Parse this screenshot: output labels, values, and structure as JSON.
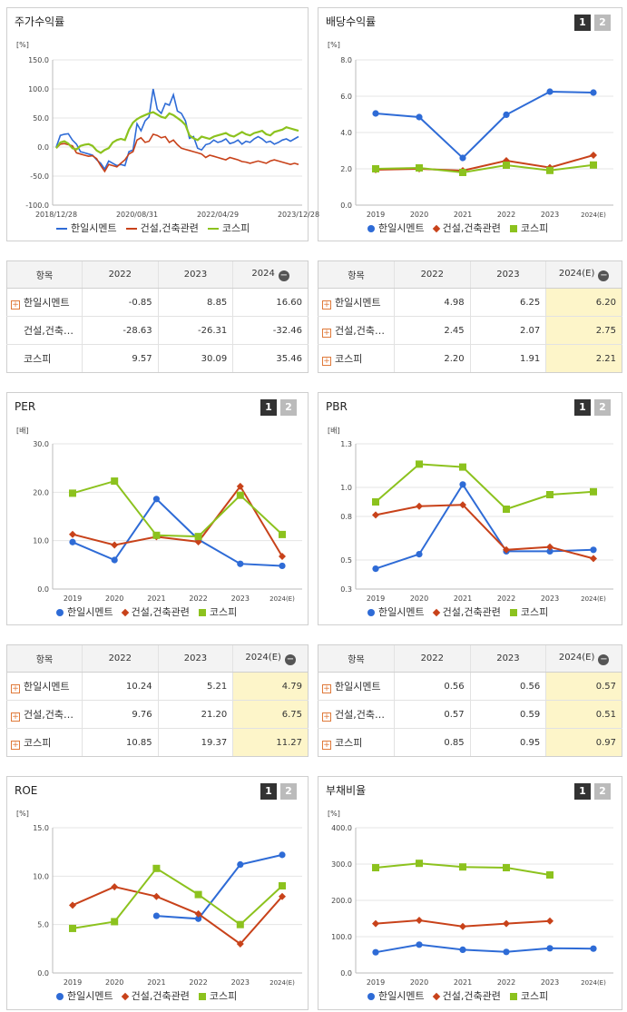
{
  "colors": {
    "s1": "#2e6bd6",
    "s2": "#c8421a",
    "s3": "#8cc21e"
  },
  "legend": [
    "한일시멘트",
    "건설,건축관련",
    "코스피"
  ],
  "chart_data": [
    {
      "title": "주가수익률",
      "type": "line",
      "unit": "[%]",
      "ylim": [
        -100,
        150
      ],
      "yticks": [
        "150.0",
        "100.0",
        "50.0",
        "0.0",
        "-50.0",
        "-100.0"
      ],
      "xticks": [
        "2018/12/28",
        "2020/08/31",
        "2022/04/29",
        "2023/12/28"
      ],
      "x": [
        0,
        1,
        2,
        3,
        4,
        5,
        6,
        7,
        8,
        9,
        10,
        11,
        12,
        13,
        14,
        15,
        16,
        17,
        18,
        19,
        20,
        21,
        22,
        23,
        24,
        25,
        26,
        27,
        28,
        29,
        30,
        31,
        32,
        33,
        34,
        35,
        36,
        37,
        38,
        39,
        40,
        41,
        42,
        43,
        44,
        45,
        46,
        47,
        48,
        49,
        50,
        51,
        52,
        53,
        54,
        55,
        56,
        57,
        58,
        59,
        60
      ],
      "series": [
        {
          "name": "한일시멘트",
          "values": [
            0,
            20,
            22,
            23,
            12,
            5,
            -8,
            -10,
            -12,
            -14,
            -22,
            -28,
            -38,
            -24,
            -28,
            -32,
            -30,
            -32,
            -8,
            -5,
            40,
            28,
            45,
            52,
            100,
            65,
            58,
            75,
            72,
            90,
            62,
            58,
            45,
            15,
            18,
            -2,
            -5,
            4,
            6,
            12,
            8,
            10,
            14,
            6,
            8,
            12,
            5,
            10,
            8,
            14,
            18,
            14,
            8,
            10,
            5,
            8,
            12,
            14,
            10,
            14,
            18
          ]
        },
        {
          "name": "건설,건축관련",
          "values": [
            -2,
            5,
            6,
            4,
            2,
            -10,
            -12,
            -14,
            -16,
            -15,
            -20,
            -32,
            -42,
            -30,
            -32,
            -34,
            -28,
            -22,
            -12,
            -8,
            12,
            16,
            8,
            10,
            22,
            20,
            16,
            18,
            8,
            12,
            4,
            -2,
            -4,
            -6,
            -8,
            -10,
            -12,
            -18,
            -14,
            -16,
            -18,
            -20,
            -22,
            -18,
            -20,
            -22,
            -25,
            -26,
            -28,
            -26,
            -24,
            -26,
            -28,
            -24,
            -22,
            -24,
            -26,
            -28,
            -30,
            -28,
            -30
          ]
        },
        {
          "name": "코스피",
          "values": [
            -2,
            8,
            10,
            6,
            -2,
            -4,
            2,
            4,
            5,
            2,
            -6,
            -10,
            -5,
            -2,
            8,
            12,
            14,
            12,
            30,
            42,
            48,
            52,
            55,
            58,
            60,
            56,
            52,
            50,
            58,
            55,
            50,
            45,
            38,
            20,
            15,
            12,
            18,
            16,
            14,
            18,
            20,
            22,
            24,
            20,
            18,
            22,
            26,
            22,
            20,
            24,
            26,
            28,
            22,
            20,
            26,
            28,
            30,
            34,
            32,
            30,
            28
          ]
        }
      ]
    },
    {
      "title": "배당수익률",
      "type": "line",
      "unit": "[%]",
      "ylim": [
        0,
        8
      ],
      "yticks": [
        "8.0",
        "6.0",
        "4.0",
        "2.0",
        "0.0"
      ],
      "categories": [
        "2019",
        "2020",
        "2021",
        "2022",
        "2023",
        "2024(E)"
      ],
      "series": [
        {
          "name": "한일시멘트",
          "values": [
            5.05,
            4.85,
            2.6,
            4.98,
            6.25,
            6.2
          ]
        },
        {
          "name": "건설,건축관련",
          "values": [
            1.95,
            2.0,
            1.9,
            2.45,
            2.07,
            2.75
          ]
        },
        {
          "name": "코스피",
          "values": [
            2.0,
            2.05,
            1.8,
            2.2,
            1.91,
            2.21
          ]
        }
      ]
    },
    {
      "title": "PER",
      "type": "line",
      "unit": "[배]",
      "ylim": [
        0,
        30
      ],
      "yticks": [
        "30.0",
        "20.0",
        "10.0",
        "0.0"
      ],
      "categories": [
        "2019",
        "2020",
        "2021",
        "2022",
        "2023",
        "2024(E)"
      ],
      "series": [
        {
          "name": "한일시멘트",
          "values": [
            9.7,
            6.0,
            18.6,
            10.24,
            5.21,
            4.79
          ]
        },
        {
          "name": "건설,건축관련",
          "values": [
            11.3,
            9.1,
            10.8,
            9.76,
            21.2,
            6.75
          ]
        },
        {
          "name": "코스피",
          "values": [
            19.8,
            22.3,
            11.1,
            10.85,
            19.37,
            11.27
          ]
        }
      ]
    },
    {
      "title": "PBR",
      "type": "line",
      "unit": "[배]",
      "ylim": [
        0.3,
        1.3
      ],
      "yticks": [
        "1.3",
        "1.0",
        "0.8",
        "0.5",
        "0.3"
      ],
      "categories": [
        "2019",
        "2020",
        "2021",
        "2022",
        "2023",
        "2024(E)"
      ],
      "series": [
        {
          "name": "한일시멘트",
          "values": [
            0.44,
            0.54,
            1.02,
            0.56,
            0.56,
            0.57
          ]
        },
        {
          "name": "건설,건축관련",
          "values": [
            0.81,
            0.87,
            0.88,
            0.57,
            0.59,
            0.51
          ]
        },
        {
          "name": "코스피",
          "values": [
            0.9,
            1.16,
            1.14,
            0.85,
            0.95,
            0.97
          ]
        }
      ]
    },
    {
      "title": "ROE",
      "type": "line",
      "unit": "[%]",
      "ylim": [
        0,
        15
      ],
      "yticks": [
        "15.0",
        "10.0",
        "5.0",
        "0.0"
      ],
      "categories": [
        "2019",
        "2020",
        "2021",
        "2022",
        "2023",
        "2024(E)"
      ],
      "series": [
        {
          "name": "한일시멘트",
          "values": [
            null,
            null,
            5.9,
            5.6,
            11.2,
            12.2
          ]
        },
        {
          "name": "건설,건축관련",
          "values": [
            7.0,
            8.9,
            7.9,
            6.1,
            3.0,
            7.9
          ]
        },
        {
          "name": "코스피",
          "values": [
            4.6,
            5.3,
            10.8,
            8.1,
            5.0,
            9.0
          ]
        }
      ]
    },
    {
      "title": "부채비율",
      "type": "line",
      "unit": "[%]",
      "ylim": [
        0,
        400
      ],
      "yticks": [
        "400.0",
        "300.0",
        "200.0",
        "100.0",
        "0.0"
      ],
      "categories": [
        "2019",
        "2020",
        "2021",
        "2022",
        "2023",
        "2024(E)"
      ],
      "series": [
        {
          "name": "한일시멘트",
          "values": [
            57,
            78,
            64,
            58,
            68,
            67
          ]
        },
        {
          "name": "건설,건축관련",
          "values": [
            136,
            145,
            128,
            136,
            143,
            null
          ]
        },
        {
          "name": "코스피",
          "values": [
            290,
            302,
            292,
            290,
            270,
            null
          ]
        }
      ]
    }
  ],
  "tables": [
    {
      "headers": [
        "항목",
        "2022",
        "2023",
        "2024"
      ],
      "rows": [
        {
          "name": "한일시멘트",
          "plus": true,
          "values": [
            "-0.85",
            "8.85",
            "16.60"
          ]
        },
        {
          "name": "건설,건축…",
          "plus": false,
          "values": [
            "-28.63",
            "-26.31",
            "-32.46"
          ]
        },
        {
          "name": "코스피",
          "plus": false,
          "values": [
            "9.57",
            "30.09",
            "35.46"
          ]
        }
      ]
    },
    {
      "headers": [
        "항목",
        "2022",
        "2023",
        "2024(E)"
      ],
      "rows": [
        {
          "name": "한일시멘트",
          "plus": true,
          "values": [
            "4.98",
            "6.25",
            "6.20"
          ]
        },
        {
          "name": "건설,건축…",
          "plus": true,
          "values": [
            "2.45",
            "2.07",
            "2.75"
          ]
        },
        {
          "name": "코스피",
          "plus": true,
          "values": [
            "2.20",
            "1.91",
            "2.21"
          ]
        }
      ]
    },
    {
      "headers": [
        "항목",
        "2022",
        "2023",
        "2024(E)"
      ],
      "rows": [
        {
          "name": "한일시멘트",
          "plus": true,
          "values": [
            "10.24",
            "5.21",
            "4.79"
          ]
        },
        {
          "name": "건설,건축…",
          "plus": true,
          "values": [
            "9.76",
            "21.20",
            "6.75"
          ]
        },
        {
          "name": "코스피",
          "plus": true,
          "values": [
            "10.85",
            "19.37",
            "11.27"
          ]
        }
      ]
    },
    {
      "headers": [
        "항목",
        "2022",
        "2023",
        "2024(E)"
      ],
      "rows": [
        {
          "name": "한일시멘트",
          "plus": true,
          "values": [
            "0.56",
            "0.56",
            "0.57"
          ]
        },
        {
          "name": "건설,건축…",
          "plus": true,
          "values": [
            "0.57",
            "0.59",
            "0.51"
          ]
        },
        {
          "name": "코스피",
          "plus": true,
          "values": [
            "0.85",
            "0.95",
            "0.97"
          ]
        }
      ]
    }
  ],
  "pager": [
    "1",
    "2"
  ]
}
